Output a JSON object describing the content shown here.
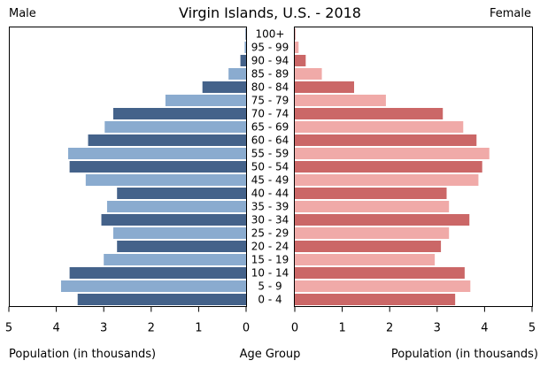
{
  "chart_data": {
    "type": "bar",
    "title": "Virgin Islands, U.S. - 2018",
    "left_label": "Male",
    "right_label": "Female",
    "xlabel_left": "Population (in thousands)",
    "xlabel_center": "Age Group",
    "xlabel_right": "Population (in thousands)",
    "categories": [
      "0 - 4",
      "5 - 9",
      "10 - 14",
      "15 - 19",
      "20 - 24",
      "25 - 29",
      "30 - 34",
      "35 - 39",
      "40 - 44",
      "45 - 49",
      "50 - 54",
      "55 - 59",
      "60 - 64",
      "65 - 69",
      "70 - 74",
      "75 - 79",
      "80 - 84",
      "85 - 89",
      "90 - 94",
      "95 - 99",
      "100+"
    ],
    "series": [
      {
        "name": "Male",
        "values": [
          3.55,
          3.9,
          3.72,
          3.0,
          2.72,
          2.8,
          3.05,
          2.93,
          2.72,
          3.38,
          3.72,
          3.75,
          3.33,
          2.98,
          2.8,
          1.7,
          0.92,
          0.37,
          0.12,
          0.03,
          0.01
        ]
      },
      {
        "name": "Female",
        "values": [
          3.38,
          3.7,
          3.58,
          2.95,
          3.08,
          3.25,
          3.68,
          3.25,
          3.2,
          3.87,
          3.95,
          4.1,
          3.83,
          3.55,
          3.12,
          1.92,
          1.25,
          0.57,
          0.23,
          0.08,
          0.01
        ]
      }
    ],
    "xlim": [
      0,
      5
    ],
    "ticks": [
      "5",
      "4",
      "3",
      "2",
      "1",
      "0"
    ],
    "ticks_right": [
      "0",
      "1",
      "2",
      "3",
      "4",
      "5"
    ],
    "colors": {
      "male_dark": "#44628a",
      "male_light": "#8aabcf",
      "female_dark": "#cb6767",
      "female_light": "#f0aaa8"
    }
  }
}
